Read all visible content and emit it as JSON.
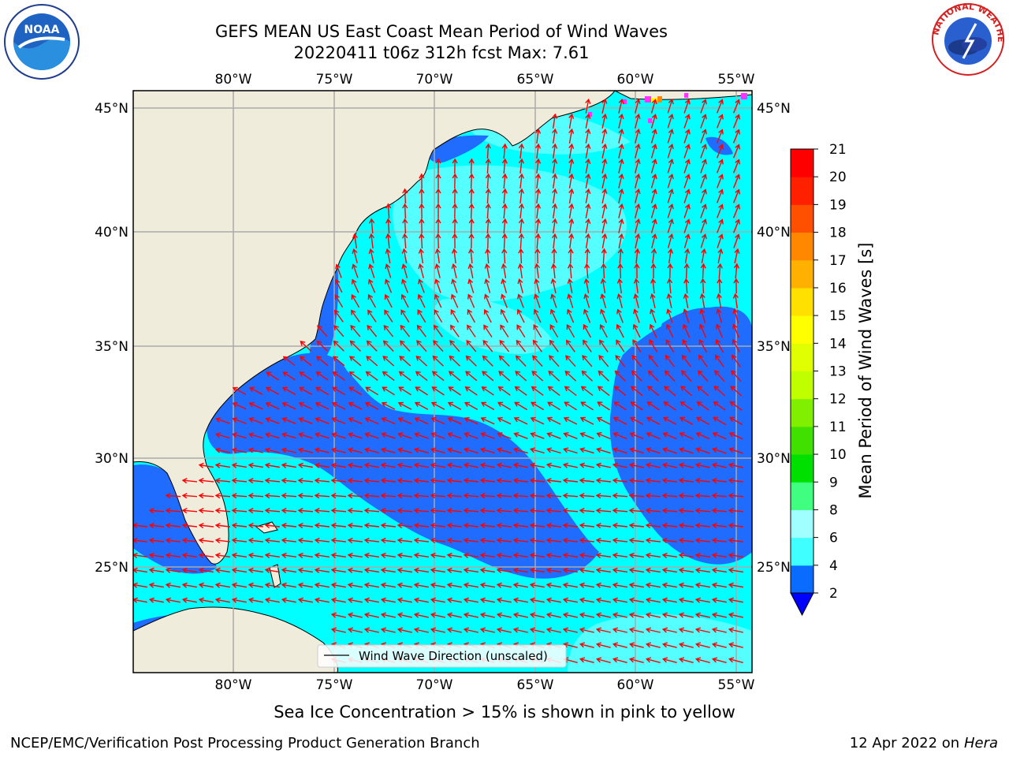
{
  "title": {
    "line1": "GEFS MEAN US East Coast Mean Period of Wind Waves",
    "line2": "20220411 t06z 312h fcst   Max: 7.61"
  },
  "map": {
    "region": "US East Coast / western North Atlantic",
    "lon_labels": [
      "80°W",
      "75°W",
      "70°W",
      "65°W",
      "60°W",
      "55°W"
    ],
    "lat_labels": [
      "45°N",
      "40°N",
      "35°N",
      "30°N",
      "25°N"
    ],
    "legend_label": "Wind Wave Direction (unscaled)",
    "arrow_color": "#ff0000",
    "land_color": "#efecdc"
  },
  "colorbar": {
    "label": "Mean Period of Wind Waves [s]",
    "ticks": [
      "2",
      "4",
      "6",
      "8",
      "9",
      "10",
      "11",
      "12",
      "13",
      "14",
      "15",
      "16",
      "17",
      "18",
      "19",
      "20",
      "21"
    ],
    "colors": [
      "#0a6cff",
      "#00ffff",
      "#40ffff",
      "#a0ffff",
      "#40ff80",
      "#00e000",
      "#40e000",
      "#80f000",
      "#c0ff00",
      "#e0ff00",
      "#ffff00",
      "#ffe000",
      "#ffb000",
      "#ff8800",
      "#ff5000",
      "#ff2000",
      "#ff0000"
    ],
    "under_color": "#0000ff"
  },
  "caption": "Sea Ice Concentration > 15% is shown in pink to yellow",
  "footer": {
    "left": "NCEP/EMC/Verification Post Processing Product Generation Branch",
    "right_date": "12 Apr 2022 on ",
    "right_host": "Hera"
  },
  "logos": {
    "noaa_text": "NOAA",
    "nws_text": "NATIONAL WEATHER SERVICE"
  }
}
